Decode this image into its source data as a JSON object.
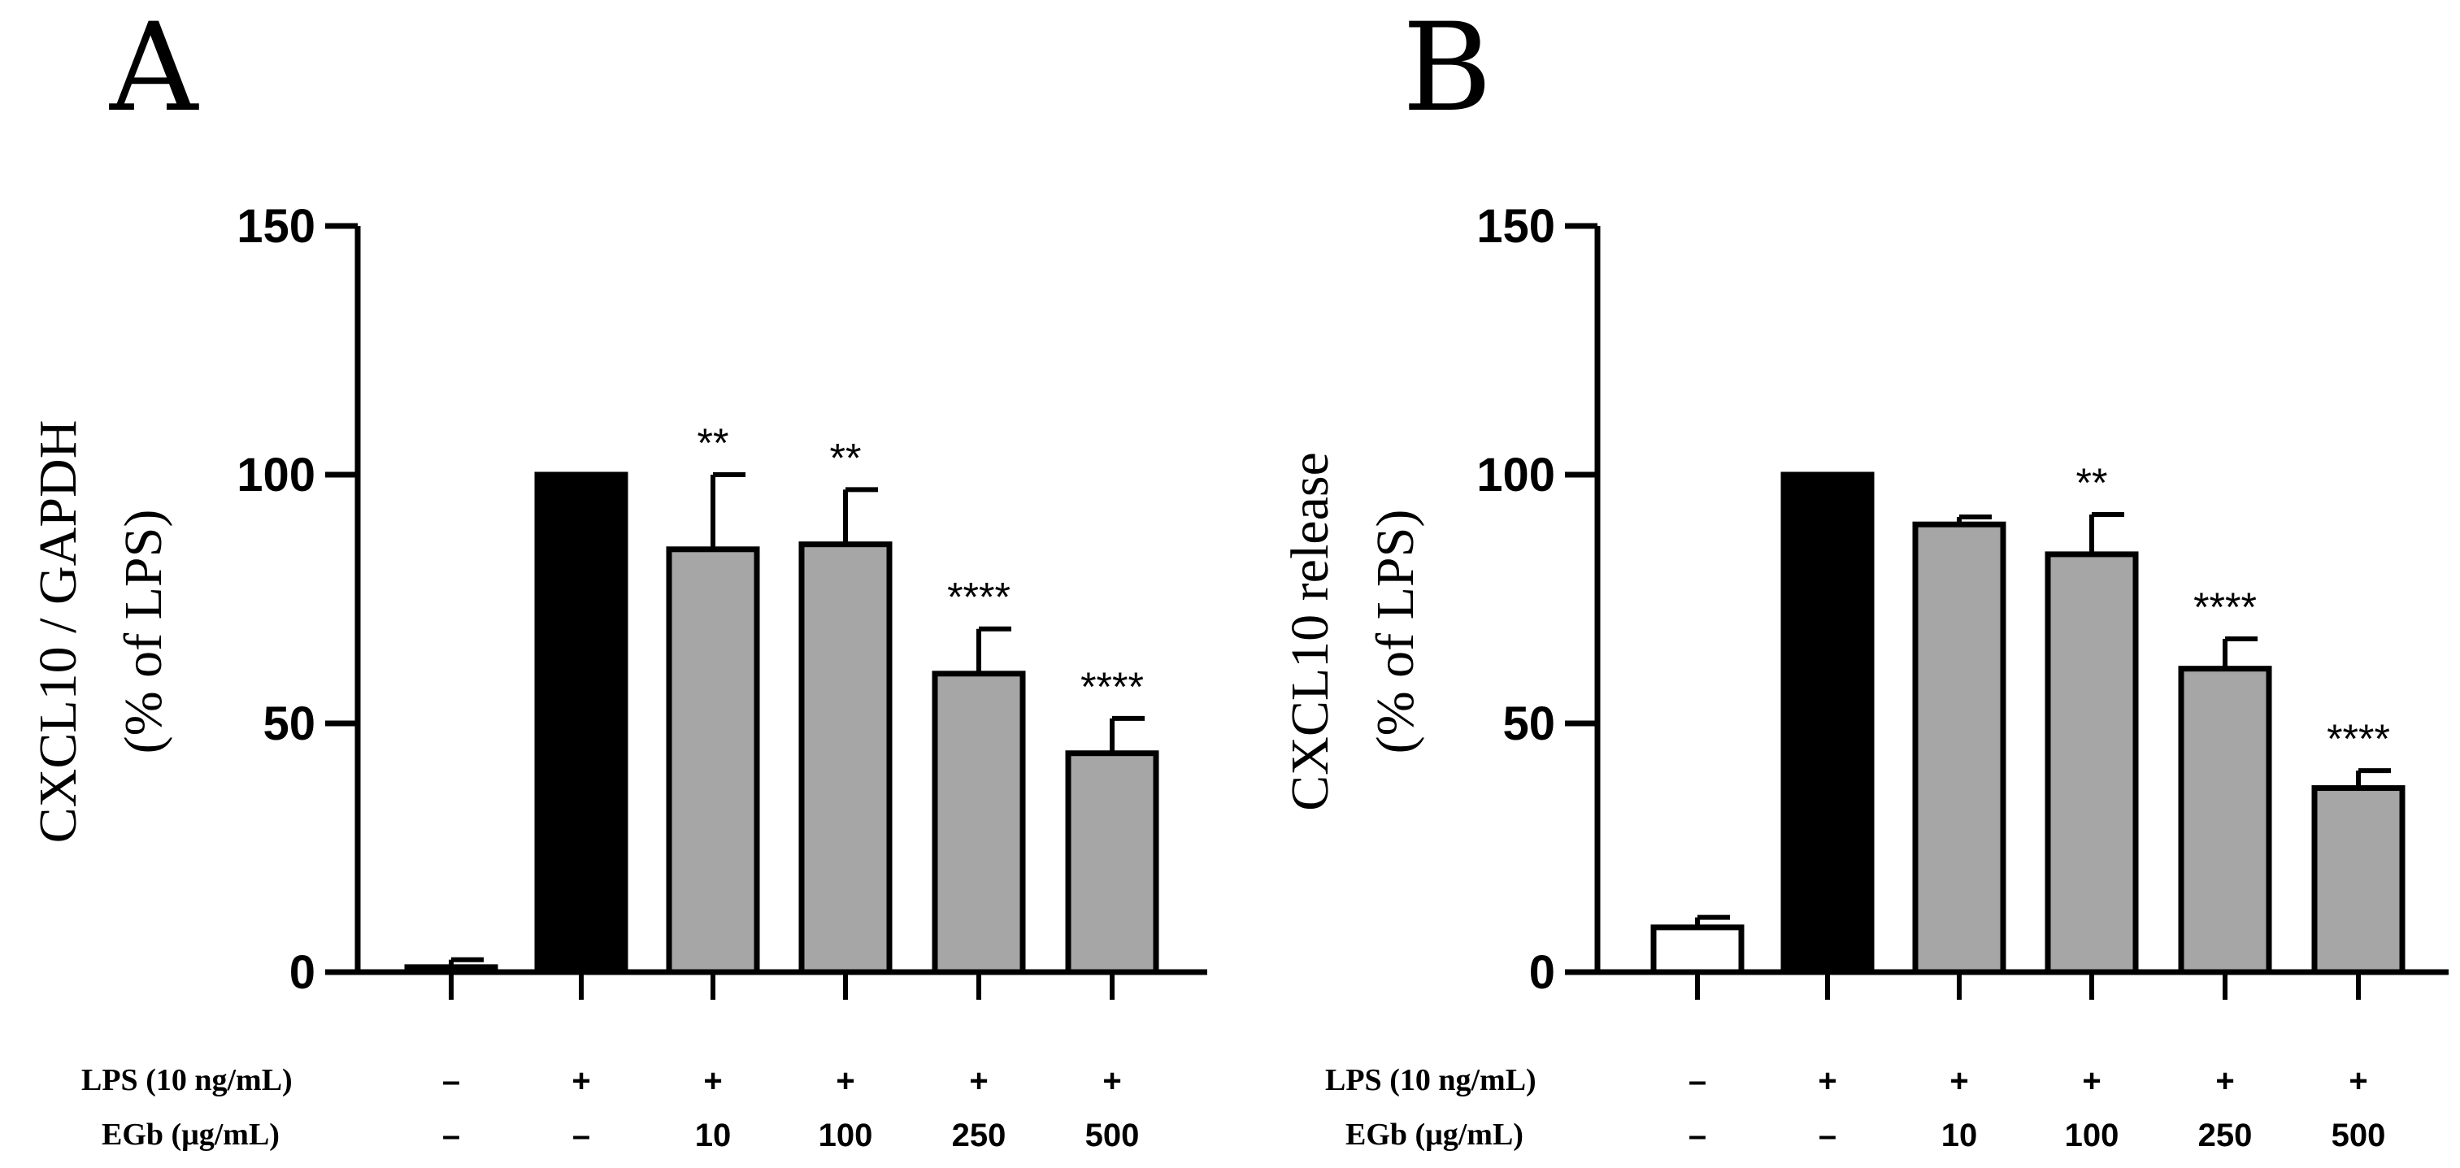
{
  "chart_data": [
    {
      "panel": "A",
      "type": "bar",
      "ylabel_line1": "CXCL10 / GAPDH",
      "ylabel_line2": "(% of LPS)",
      "ylim": [
        0,
        150
      ],
      "yticks": [
        0,
        50,
        100,
        150
      ],
      "categories": [
        "ctrl",
        "LPS",
        "LPS+EGb10",
        "LPS+EGb100",
        "LPS+EGb250",
        "LPS+EGb500"
      ],
      "values": [
        1,
        100,
        85,
        86,
        60,
        44
      ],
      "errors": [
        1.5,
        0,
        15,
        11,
        9,
        7
      ],
      "colors": [
        "#ffffff",
        "#000000",
        "#a6a6a6",
        "#a6a6a6",
        "#a6a6a6",
        "#a6a6a6"
      ],
      "significance": [
        "",
        "",
        "**",
        "**",
        "****",
        "****"
      ],
      "row1_label": "LPS (10 ng/mL)",
      "row1": [
        "–",
        "+",
        "+",
        "+",
        "+",
        "+"
      ],
      "row2_label": "EGb (μg/mL)",
      "row2": [
        "–",
        "–",
        "10",
        "100",
        "250",
        "500"
      ]
    },
    {
      "panel": "B",
      "type": "bar",
      "ylabel_line1": "CXCL10 release",
      "ylabel_line2": "(% of LPS)",
      "ylim": [
        0,
        150
      ],
      "yticks": [
        0,
        50,
        100,
        150
      ],
      "categories": [
        "ctrl",
        "LPS",
        "LPS+EGb10",
        "LPS+EGb100",
        "LPS+EGb250",
        "LPS+EGb500"
      ],
      "values": [
        9,
        100,
        90,
        84,
        61,
        37
      ],
      "errors": [
        2,
        0,
        1.5,
        8,
        6,
        3.5
      ],
      "colors": [
        "#ffffff",
        "#000000",
        "#a6a6a6",
        "#a6a6a6",
        "#a6a6a6",
        "#a6a6a6"
      ],
      "significance": [
        "",
        "",
        "",
        "**",
        "****",
        "****"
      ],
      "row1_label": "LPS (10 ng/mL)",
      "row1": [
        "–",
        "+",
        "+",
        "+",
        "+",
        "+"
      ],
      "row2_label": "EGb (μg/mL)",
      "row2": [
        "–",
        "–",
        "10",
        "100",
        "250",
        "500"
      ]
    }
  ]
}
